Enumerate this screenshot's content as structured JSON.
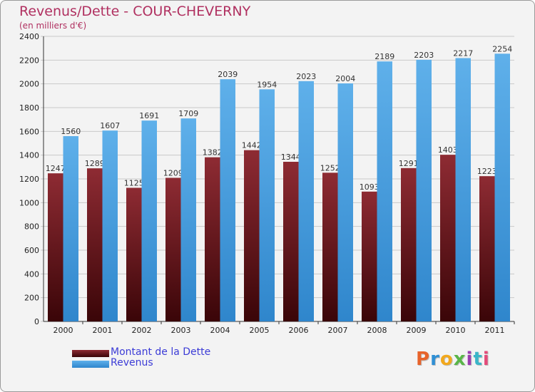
{
  "chart_data": {
    "type": "bar",
    "title": "Revenus/Dette - COUR-CHEVERNY",
    "subtitle": "(en milliers d'€)",
    "categories": [
      "2000",
      "2001",
      "2002",
      "2003",
      "2004",
      "2005",
      "2006",
      "2007",
      "2008",
      "2009",
      "2010",
      "2011"
    ],
    "series": [
      {
        "name": "Montant de la Dette",
        "color": "#7a1520",
        "values": [
          1247,
          1289,
          1125,
          1209,
          1382,
          1442,
          1344,
          1252,
          1093,
          1291,
          1403,
          1223
        ]
      },
      {
        "name": "Revenus",
        "color": "#4ea3e2",
        "values": [
          1560,
          1607,
          1691,
          1709,
          2039,
          1954,
          2023,
          2004,
          2189,
          2203,
          2217,
          2254
        ]
      }
    ],
    "ylim": [
      0,
      2400
    ],
    "yticks": [
      0,
      200,
      400,
      600,
      800,
      1000,
      1200,
      1400,
      1600,
      1800,
      2000,
      2200,
      2400
    ],
    "grid": true,
    "legend_position": "bottom-left"
  },
  "logo": {
    "text": "Proxiti",
    "colors": [
      "#e7632a",
      "#2f8fd4",
      "#f2a81d",
      "#59b548",
      "#9a3bb0",
      "#3ab5c8",
      "#e34b7a"
    ]
  }
}
